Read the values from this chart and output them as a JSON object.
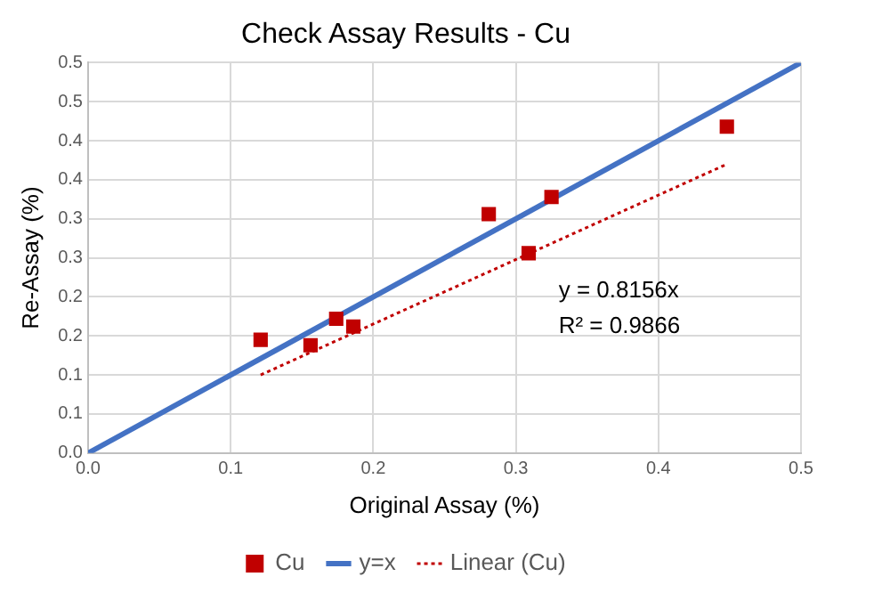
{
  "chart_data": {
    "type": "scatter",
    "title": "Check Assay Results - Cu",
    "xlabel": "Original Assay (%)",
    "ylabel": "Re-Assay (%)",
    "xlim": [
      0,
      0.5
    ],
    "xticks": [
      {
        "value": 0,
        "label": "0.0"
      },
      0.1,
      0.2,
      0.3,
      0.4,
      0.5
    ],
    "ylim": [
      0,
      0.5
    ],
    "yticks": [
      {
        "value": 0,
        "label": "0.0"
      },
      {
        "value": 0.05,
        "label": "0.1"
      },
      0.1,
      {
        "value": 0.15,
        "label": "0.2"
      },
      0.2,
      {
        "value": 0.25,
        "label": "0.3"
      },
      0.3,
      {
        "value": 0.35,
        "label": "0.4"
      },
      0.4,
      {
        "value": 0.45,
        "label": "0.5"
      },
      0.5
    ],
    "grid": true,
    "legend": "bottom",
    "annotations": [
      "y = 0.8156x",
      "R² = 0.9866"
    ],
    "series": [
      {
        "name": "Cu",
        "marker": "square",
        "color": "#c00000",
        "x": [
          0.121,
          0.156,
          0.174,
          0.186,
          0.281,
          0.309,
          0.325,
          0.448
        ],
        "values": [
          0.145,
          0.138,
          0.172,
          0.162,
          0.306,
          0.256,
          0.328,
          0.418
        ]
      },
      {
        "name": "y=x",
        "type": "line",
        "marker": "none",
        "line_style": "solid",
        "color": "#4472c4",
        "x": [
          0,
          0.5
        ],
        "values": [
          0,
          0.5
        ]
      },
      {
        "name": "Linear (Cu)",
        "type": "line",
        "marker": "none",
        "line_style": "dotted",
        "color": "#c00000",
        "x": [
          0.121,
          0.448
        ],
        "values": [
          0.1,
          0.37
        ]
      }
    ]
  }
}
